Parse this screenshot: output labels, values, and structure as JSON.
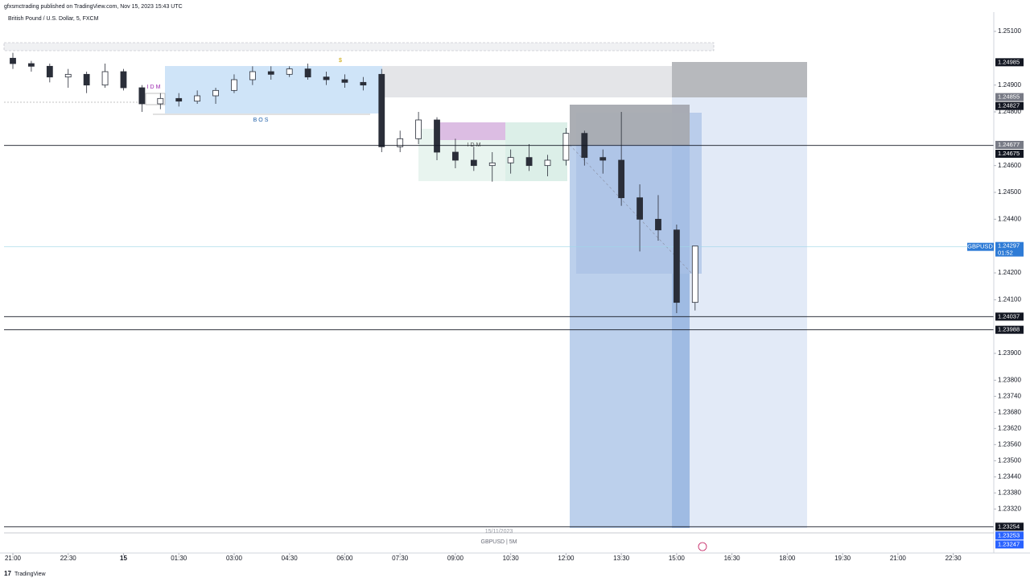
{
  "header": {
    "publisher": "gfxsmctrading published on TradingView.com, Nov 15, 2023 15:43 UTC",
    "symbol": "British Pound / U.S. Dollar, 5, FXCM"
  },
  "chart_data": {
    "type": "candlestick",
    "x": [
      0,
      0.5,
      1,
      1.5,
      2,
      2.5,
      3,
      3.5,
      4,
      4.5,
      5,
      5.5,
      6,
      6.5,
      7,
      7.5,
      8,
      8.5,
      9,
      9.5,
      10,
      10.5,
      11,
      11.5,
      12,
      12.5,
      13,
      13.5,
      14,
      14.5,
      15,
      15.5,
      16,
      16.5,
      17,
      17.5,
      18,
      18.5
    ],
    "open": [
      1.25,
      1.2498,
      1.2497,
      1.2493,
      1.2494,
      1.249,
      1.2495,
      1.2489,
      1.2483,
      1.2485,
      1.2484,
      1.2486,
      1.2488,
      1.2492,
      1.2495,
      1.2494,
      1.2496,
      1.2493,
      1.2492,
      1.2491,
      1.2494,
      1.2467,
      1.247,
      1.2477,
      1.2465,
      1.2462,
      1.246,
      1.2461,
      1.2463,
      1.246,
      1.2462,
      1.2472,
      1.2463,
      1.2462,
      1.2448,
      1.244,
      1.2436,
      1.2409
    ],
    "high": [
      1.2502,
      1.2499,
      1.2498,
      1.2496,
      1.2495,
      1.2498,
      1.2496,
      1.249,
      1.2487,
      1.2487,
      1.2488,
      1.2489,
      1.2494,
      1.2497,
      1.2497,
      1.2497,
      1.2498,
      1.2495,
      1.2494,
      1.2493,
      1.2496,
      1.2473,
      1.248,
      1.2478,
      1.247,
      1.2467,
      1.2465,
      1.2466,
      1.2468,
      1.2464,
      1.2474,
      1.2473,
      1.2466,
      1.248,
      1.2453,
      1.2449,
      1.2438,
      1.243
    ],
    "low": [
      1.2496,
      1.2495,
      1.2491,
      1.2489,
      1.2487,
      1.2489,
      1.2488,
      1.248,
      1.2481,
      1.2482,
      1.2483,
      1.2483,
      1.2487,
      1.249,
      1.2492,
      1.2493,
      1.2492,
      1.249,
      1.2489,
      1.2488,
      1.2465,
      1.2465,
      1.2468,
      1.2462,
      1.2459,
      1.2458,
      1.2454,
      1.2457,
      1.2458,
      1.2456,
      1.246,
      1.246,
      1.2457,
      1.2445,
      1.2428,
      1.2432,
      1.2405,
      1.2406
    ],
    "close": [
      1.2498,
      1.2497,
      1.2493,
      1.2494,
      1.249,
      1.2495,
      1.2489,
      1.2483,
      1.2485,
      1.2484,
      1.2486,
      1.2488,
      1.2492,
      1.2495,
      1.2494,
      1.2496,
      1.2493,
      1.2492,
      1.2491,
      1.249,
      1.2467,
      1.247,
      1.2477,
      1.2465,
      1.2462,
      1.246,
      1.2461,
      1.2463,
      1.246,
      1.2462,
      1.2472,
      1.2463,
      1.2462,
      1.2448,
      1.244,
      1.2436,
      1.2409,
      1.243
    ],
    "xlim": [
      -0.24,
      26.6
    ],
    "xticks": [
      {
        "value": 0,
        "label": "21:00"
      },
      {
        "value": 1.5,
        "label": "22:30"
      },
      {
        "value": 3,
        "label": "15"
      },
      {
        "value": 4.5,
        "label": "01:30"
      },
      {
        "value": 6,
        "label": "03:00"
      },
      {
        "value": 7.5,
        "label": "04:30"
      },
      {
        "value": 9,
        "label": "06:00"
      },
      {
        "value": 10.5,
        "label": "07:30"
      },
      {
        "value": 12,
        "label": "09:00"
      },
      {
        "value": 13.5,
        "label": "10:30"
      },
      {
        "value": 15,
        "label": "12:00"
      },
      {
        "value": 16.5,
        "label": "13:30"
      },
      {
        "value": 18,
        "label": "15:00"
      },
      {
        "value": 19.5,
        "label": "16:30"
      },
      {
        "value": 21,
        "label": "18:00"
      },
      {
        "value": 22.5,
        "label": "19:30"
      },
      {
        "value": 24,
        "label": "21:00"
      },
      {
        "value": 25.5,
        "label": "22:30"
      }
    ],
    "ylim": [
      1.23246,
      1.25172
    ],
    "yticks": [
      {
        "value": 1.251,
        "label": "1.25100"
      },
      {
        "value": 1.249,
        "label": "1.24900"
      },
      {
        "value": 1.248,
        "label": "1.24800"
      },
      {
        "value": 1.246,
        "label": "1.24600"
      },
      {
        "value": 1.245,
        "label": "1.24500"
      },
      {
        "value": 1.244,
        "label": "1.24400"
      },
      {
        "value": 1.242,
        "label": "1.24200"
      },
      {
        "value": 1.241,
        "label": "1.24100"
      },
      {
        "value": 1.239,
        "label": "1.23900"
      },
      {
        "value": 1.238,
        "label": "1.23800"
      },
      {
        "value": 1.2374,
        "label": "1.23740"
      },
      {
        "value": 1.2368,
        "label": "1.23680"
      },
      {
        "value": 1.2362,
        "label": "1.23620"
      },
      {
        "value": 1.2356,
        "label": "1.23560"
      },
      {
        "value": 1.235,
        "label": "1.23500"
      },
      {
        "value": 1.2344,
        "label": "1.23440"
      },
      {
        "value": 1.2338,
        "label": "1.23380"
      },
      {
        "value": 1.2332,
        "label": "1.23320"
      }
    ],
    "price_tags": [
      {
        "value": 1.24985,
        "color": "#131722",
        "line": false
      },
      {
        "value": 1.24855,
        "color": "#787b86",
        "line": false
      },
      {
        "value": 1.24827,
        "color": "#131722",
        "line": false
      },
      {
        "value": 1.24677,
        "color": "#787b86",
        "line": false
      },
      {
        "value": 1.24675,
        "color": "#131722",
        "line": true
      },
      {
        "value": 1.24037,
        "color": "#131722",
        "line": true
      },
      {
        "value": 1.23988,
        "color": "#131722",
        "line": true
      },
      {
        "value": 1.23254,
        "color": "#131722",
        "line": true
      },
      {
        "value": 1.23253,
        "color": "#2962ff",
        "line": false
      },
      {
        "value": 1.23247,
        "color": "#2962ff",
        "line": false
      }
    ],
    "last": {
      "symbol": "GBPUSD",
      "price": 1.24297,
      "countdown": "01:52",
      "color": "#2e7bd6"
    },
    "up_color": "#ffffff",
    "down_color": "#2a2e39",
    "annotations": [
      "IDM",
      "BOS",
      "IDM",
      "$"
    ],
    "date": "15/11/2023",
    "pane_label": "GBPUSD | 5M"
  },
  "footer": "TradingView"
}
